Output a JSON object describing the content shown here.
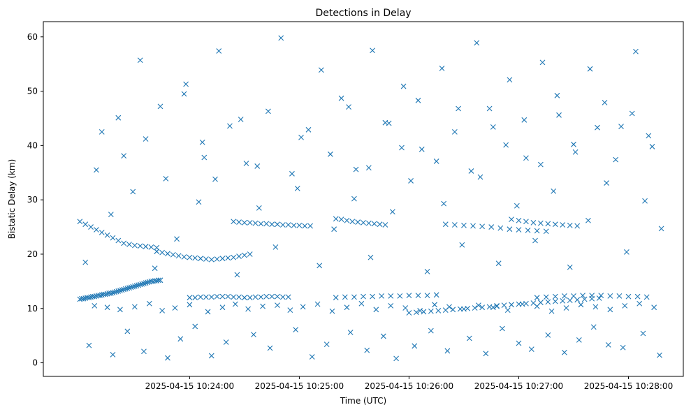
{
  "chart_data": {
    "type": "scatter",
    "title": "Detections in Delay",
    "xlabel": "Time (UTC)",
    "ylabel": "Bistatic Delay (km)",
    "x_tick_labels": [
      "2025-04-15 10:24:00",
      "2025-04-15 10:25:00",
      "2025-04-15 10:26:00",
      "2025-04-15 10:27:00",
      "2025-04-15 10:28:00"
    ],
    "y_tick_labels": [
      "0",
      "10",
      "20",
      "30",
      "40",
      "50",
      "60"
    ],
    "y_ticks": [
      0,
      10,
      20,
      30,
      40,
      50,
      60
    ],
    "xlim_seconds_past_10_23": [
      -20,
      330
    ],
    "ylim": [
      -2.5,
      62.8
    ],
    "marker": "x",
    "series_color": "#1f77b4",
    "grid": false,
    "series": [
      {
        "x_seconds_past_10_23": [
          0,
          1,
          2,
          3,
          4,
          5,
          6,
          7,
          8,
          9,
          10,
          11,
          12,
          13,
          14,
          15,
          16,
          17,
          18,
          19,
          20,
          21,
          22,
          23,
          24,
          25,
          26,
          27,
          28,
          29,
          30,
          31,
          32,
          33,
          34,
          35,
          36,
          37,
          38,
          39,
          40,
          41,
          42,
          43,
          44,
          42,
          45,
          48,
          51,
          54,
          57,
          60,
          63,
          66,
          69,
          72,
          75,
          78,
          81,
          84,
          87,
          90,
          93,
          60,
          63,
          66,
          69,
          72,
          75,
          78,
          81,
          84,
          87,
          90,
          93,
          96,
          99,
          102,
          105,
          108,
          111,
          114,
          0,
          3,
          6,
          9,
          12,
          15,
          18,
          21,
          24,
          27,
          30,
          33,
          36,
          39,
          42,
          84,
          87,
          90,
          93,
          96,
          99,
          102,
          105,
          108,
          111,
          114,
          117,
          120,
          123,
          126,
          140,
          143,
          146,
          149,
          152,
          155,
          158,
          161,
          164,
          167,
          140,
          145,
          150,
          155,
          160,
          165,
          170,
          175,
          180,
          185,
          190,
          195,
          180,
          184,
          188,
          192,
          196,
          200,
          204,
          208,
          212,
          216,
          220,
          224,
          228,
          200,
          205,
          210,
          215,
          220,
          225,
          230,
          235,
          240,
          245,
          250,
          255,
          228,
          232,
          236,
          240,
          244,
          248,
          252,
          256,
          260,
          264,
          268,
          272,
          276,
          280,
          284,
          236,
          240,
          244,
          248,
          252,
          256,
          260,
          264,
          268,
          272,
          250,
          255,
          260,
          265,
          270,
          275,
          280,
          285,
          290,
          295,
          300,
          305,
          310,
          8,
          15,
          22,
          30,
          38,
          45,
          52,
          60,
          70,
          78,
          85,
          92,
          100,
          108,
          115,
          122,
          130,
          138,
          146,
          154,
          162,
          170,
          178,
          186,
          194,
          202,
          210,
          218,
          226,
          234,
          242,
          250,
          258,
          266,
          274,
          282,
          290,
          298,
          306,
          314,
          5,
          18,
          26,
          35,
          48,
          55,
          63,
          72,
          80,
          95,
          104,
          118,
          127,
          135,
          148,
          157,
          166,
          173,
          183,
          192,
          201,
          213,
          222,
          231,
          240,
          247,
          256,
          265,
          273,
          281,
          289,
          297,
          308,
          317,
          12,
          24,
          33,
          44,
          58,
          67,
          76,
          88,
          97,
          110,
          121,
          132,
          143,
          151,
          160,
          169,
          177,
          187,
          198,
          207,
          217,
          226,
          235,
          244,
          253,
          262,
          270,
          279,
          287,
          296,
          304,
          313,
          3,
          17,
          29,
          41,
          53,
          65,
          74,
          86,
          98,
          107,
          119,
          131,
          139,
          150,
          159,
          171,
          181,
          190,
          199,
          209,
          219,
          229,
          239,
          249,
          259,
          268,
          278,
          288,
          299,
          309,
          318,
          9,
          21,
          36,
          47,
          57,
          68,
          82,
          91,
          103,
          116,
          125,
          137,
          147,
          158,
          167,
          176,
          185,
          195,
          205,
          214,
          224,
          233,
          243,
          252,
          261,
          271,
          283,
          293,
          302,
          311
        ],
        "y": [
          11.7,
          11.8,
          11.8,
          11.9,
          12.0,
          12.0,
          12.1,
          12.2,
          12.2,
          12.3,
          12.4,
          12.4,
          12.5,
          12.6,
          12.6,
          12.7,
          12.8,
          12.8,
          12.9,
          13.0,
          13.1,
          13.2,
          13.3,
          13.4,
          13.5,
          13.6,
          13.7,
          13.8,
          13.9,
          14.0,
          14.1,
          14.2,
          14.3,
          14.4,
          14.5,
          14.6,
          14.7,
          14.8,
          14.9,
          15.0,
          15.0,
          15.1,
          15.1,
          15.2,
          15.2,
          20.5,
          20.3,
          20.1,
          19.9,
          19.7,
          19.5,
          19.4,
          19.3,
          19.2,
          19.1,
          19.0,
          19.1,
          19.2,
          19.3,
          19.4,
          19.6,
          19.8,
          20.0,
          12.0,
          12.0,
          12.1,
          12.1,
          12.1,
          12.2,
          12.2,
          12.2,
          12.1,
          12.1,
          12.0,
          12.0,
          12.1,
          12.1,
          12.2,
          12.2,
          12.2,
          12.1,
          12.1,
          26.0,
          25.5,
          25.0,
          24.5,
          24.0,
          23.5,
          23.0,
          22.5,
          22.0,
          21.8,
          21.6,
          21.5,
          21.4,
          21.3,
          21.2,
          26.0,
          25.9,
          25.8,
          25.8,
          25.7,
          25.6,
          25.6,
          25.5,
          25.5,
          25.4,
          25.4,
          25.3,
          25.3,
          25.2,
          25.2,
          26.5,
          26.4,
          26.2,
          26.0,
          25.9,
          25.8,
          25.7,
          25.6,
          25.5,
          25.4,
          12.0,
          12.1,
          12.1,
          12.2,
          12.2,
          12.3,
          12.3,
          12.3,
          12.4,
          12.4,
          12.4,
          12.5,
          9.2,
          9.3,
          9.4,
          9.5,
          9.6,
          9.7,
          9.8,
          9.9,
          10.0,
          10.1,
          10.2,
          10.3,
          10.4,
          25.5,
          25.4,
          25.3,
          25.2,
          25.1,
          25.0,
          24.8,
          24.6,
          24.5,
          24.4,
          24.3,
          24.2,
          10.5,
          10.6,
          10.7,
          10.8,
          10.9,
          11.0,
          11.1,
          11.2,
          11.3,
          11.4,
          11.5,
          11.6,
          11.7,
          11.8,
          11.9,
          26.4,
          26.2,
          26.0,
          25.8,
          25.7,
          25.6,
          25.5,
          25.4,
          25.3,
          25.2,
          12.0,
          12.1,
          12.2,
          12.3,
          12.3,
          12.4,
          12.4,
          12.4,
          12.3,
          12.3,
          12.2,
          12.2,
          12.1,
          10.5,
          10.2,
          9.8,
          10.3,
          10.9,
          9.6,
          10.1,
          10.7,
          9.4,
          10.2,
          10.8,
          9.9,
          10.4,
          10.6,
          9.7,
          10.3,
          10.8,
          9.5,
          10.2,
          10.9,
          9.8,
          10.5,
          10.1,
          9.6,
          10.7,
          10.3,
          9.9,
          10.6,
          10.2,
          9.7,
          10.8,
          10.4,
          9.5,
          10.1,
          10.7,
          10.3,
          9.8,
          10.5,
          10.9,
          10.2,
          3.2,
          1.5,
          5.8,
          2.1,
          0.9,
          4.4,
          6.7,
          1.3,
          3.8,
          5.2,
          2.7,
          6.1,
          1.1,
          3.4,
          5.6,
          2.3,
          4.9,
          0.8,
          3.1,
          5.9,
          2.2,
          4.5,
          1.7,
          6.3,
          3.6,
          2.5,
          5.1,
          1.9,
          4.2,
          6.6,
          3.3,
          2.8,
          5.4,
          1.4,
          42.5,
          38.1,
          55.7,
          47.2,
          51.3,
          40.6,
          57.4,
          44.8,
          36.2,
          59.8,
          41.5,
          53.9,
          48.7,
          35.6,
          57.5,
          44.1,
          50.9,
          39.3,
          54.2,
          46.8,
          58.9,
          43.4,
          52.1,
          37.7,
          55.3,
          45.6,
          40.2,
          54.1,
          47.9,
          43.5,
          57.3,
          39.8,
          18.5,
          27.3,
          31.5,
          17.4,
          22.8,
          29.6,
          33.8,
          16.2,
          28.5,
          21.3,
          32.1,
          17.9,
          24.6,
          30.2,
          19.4,
          27.8,
          33.5,
          16.8,
          29.3,
          21.7,
          34.2,
          18.3,
          28.9,
          22.5,
          31.6,
          17.6,
          26.2,
          33.1,
          20.4,
          29.8,
          24.7,
          35.5,
          45.1,
          41.2,
          33.9,
          49.5,
          37.8,
          43.6,
          36.7,
          46.3,
          34.8,
          42.9,
          38.4,
          47.1,
          35.9,
          44.2,
          39.6,
          48.3,
          37.1,
          42.5,
          35.3,
          46.8,
          40.1,
          44.7,
          36.5,
          49.2,
          38.8,
          43.3,
          37.4,
          45.9,
          41.8
        ]
      }
    ]
  }
}
